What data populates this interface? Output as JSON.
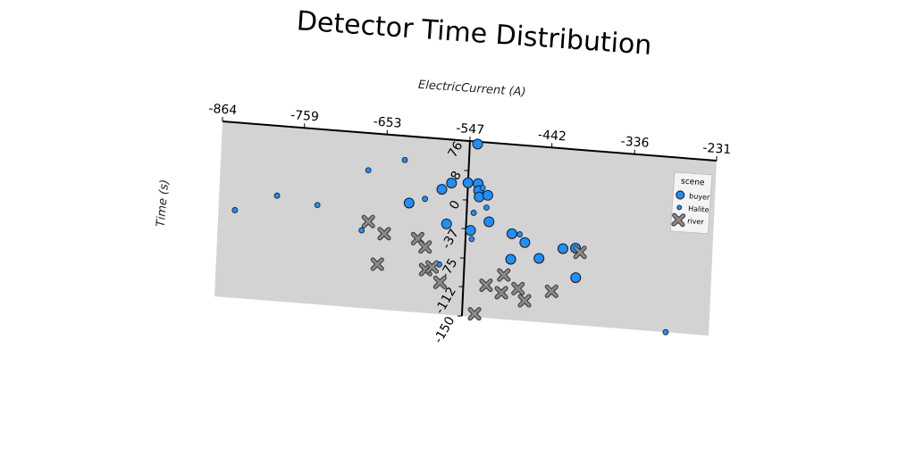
{
  "chart_data": {
    "type": "scatter",
    "title": "Detector Time Distribution",
    "xlabel": "ElectricCurrent (A)",
    "ylabel": "Time (s)",
    "xlim": [
      -864,
      -231
    ],
    "ylim": [
      -150,
      76
    ],
    "x_ticks": [
      "-864",
      "-759",
      "-653",
      "-547",
      "-442",
      "-336",
      "-231"
    ],
    "y_ticks": [
      "76",
      "38",
      "0",
      "-37",
      "-75",
      "-112",
      "-150"
    ],
    "legend": {
      "title": "scene",
      "position": "right",
      "entries": [
        "buyer",
        "Halite",
        "river"
      ]
    },
    "series": [
      {
        "name": "buyer",
        "marker": "circle-large",
        "color": "#1f8fff",
        "points": [
          [
            -537,
            73
          ],
          [
            -547,
            22
          ],
          [
            -534,
            22
          ],
          [
            -533,
            13
          ],
          [
            -532,
            5
          ],
          [
            -521,
            8
          ],
          [
            -568,
            20
          ],
          [
            -580,
            11
          ],
          [
            -621,
            -10
          ],
          [
            -518,
            -26
          ],
          [
            -572,
            -33
          ],
          [
            -488,
            -39
          ],
          [
            -541,
            -39
          ],
          [
            -471,
            -49
          ],
          [
            -488,
            -72
          ],
          [
            -452,
            -68
          ],
          [
            -422,
            -53
          ],
          [
            -406,
            -51
          ],
          [
            -404,
            -89
          ]
        ]
      },
      {
        "name": "Halite",
        "marker": "circle-small",
        "color": "#1f8fff",
        "points": [
          [
            -843,
            -37
          ],
          [
            -790,
            -14
          ],
          [
            -738,
            -22
          ],
          [
            -675,
            28
          ],
          [
            -629,
            45
          ],
          [
            -601,
            -3
          ],
          [
            -538,
            -16
          ],
          [
            -528,
            17
          ],
          [
            -522,
            -8
          ],
          [
            -539,
            -50
          ],
          [
            -478,
            -39
          ],
          [
            -680,
            -50
          ],
          [
            -579,
            -86
          ],
          [
            -286,
            -150
          ]
        ]
      },
      {
        "name": "river",
        "marker": "x",
        "color": "#808080",
        "points": [
          [
            -672,
            -38
          ],
          [
            -651,
            -52
          ],
          [
            -608,
            -55
          ],
          [
            -598,
            -65
          ],
          [
            -596,
            -94
          ],
          [
            -588,
            -90
          ],
          [
            -658,
            -92
          ],
          [
            -577,
            -109
          ],
          [
            -518,
            -108
          ],
          [
            -496,
            -93
          ],
          [
            -498,
            -116
          ],
          [
            -468,
            -124
          ],
          [
            -477,
            -109
          ],
          [
            -531,
            -146
          ],
          [
            -434,
            -109
          ],
          [
            -400,
            -56
          ]
        ]
      }
    ]
  }
}
